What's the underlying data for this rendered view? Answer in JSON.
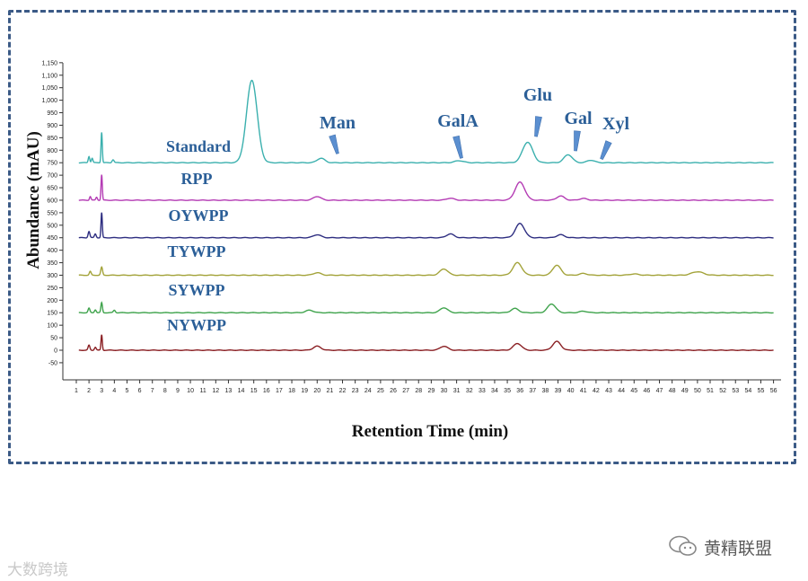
{
  "chart_data": {
    "type": "line",
    "title": "",
    "xlabel": "Retention Time (min)",
    "ylabel": "Abundance (mAU)",
    "xlim": [
      0,
      56
    ],
    "ylim": [
      -115,
      1150
    ],
    "x_ticks": [
      1,
      2,
      3,
      4,
      5,
      6,
      7,
      8,
      9,
      10,
      11,
      12,
      13,
      14,
      15,
      16,
      17,
      18,
      19,
      20,
      21,
      22,
      23,
      24,
      25,
      26,
      27,
      28,
      29,
      30,
      31,
      32,
      33,
      34,
      35,
      36,
      37,
      38,
      39,
      40,
      41,
      42,
      43,
      44,
      45,
      46,
      47,
      48,
      49,
      50,
      51,
      52,
      53,
      54,
      55,
      56
    ],
    "y_ticks": [
      -50,
      0,
      50,
      100,
      150,
      200,
      250,
      300,
      350,
      400,
      450,
      500,
      550,
      600,
      650,
      700,
      750,
      800,
      850,
      900,
      950,
      1000,
      1050,
      1100,
      1150
    ],
    "grid": false,
    "series": [
      {
        "name": "Standard",
        "color": "#3bb0ae",
        "baseline": 750,
        "peaks": [
          {
            "x": 2.0,
            "h": 25,
            "w": 0.06
          },
          {
            "x": 2.25,
            "h": 18,
            "w": 0.06
          },
          {
            "x": 3.0,
            "h": 122,
            "w": 0.05
          },
          {
            "x": 3.9,
            "h": 12,
            "w": 0.08
          },
          {
            "x": 14.85,
            "h": 330,
            "w": 0.42
          },
          {
            "x": 20.3,
            "h": 18,
            "w": 0.3
          },
          {
            "x": 31.2,
            "h": 8,
            "w": 0.35
          },
          {
            "x": 36.6,
            "h": 82,
            "w": 0.4
          },
          {
            "x": 39.8,
            "h": 32,
            "w": 0.33
          },
          {
            "x": 41.6,
            "h": 10,
            "w": 0.3
          }
        ]
      },
      {
        "name": "RPP",
        "color": "#b43bb4",
        "baseline": 600,
        "peaks": [
          {
            "x": 2.1,
            "h": 15,
            "w": 0.06
          },
          {
            "x": 2.6,
            "h": 12,
            "w": 0.06
          },
          {
            "x": 3.0,
            "h": 102,
            "w": 0.05
          },
          {
            "x": 20.0,
            "h": 15,
            "w": 0.3
          },
          {
            "x": 30.5,
            "h": 8,
            "w": 0.3
          },
          {
            "x": 36.0,
            "h": 72,
            "w": 0.38
          },
          {
            "x": 39.2,
            "h": 17,
            "w": 0.3
          },
          {
            "x": 41.0,
            "h": 7,
            "w": 0.3
          }
        ]
      },
      {
        "name": "OYWPP",
        "color": "#2d2d80",
        "baseline": 450,
        "peaks": [
          {
            "x": 2.0,
            "h": 25,
            "w": 0.07
          },
          {
            "x": 2.5,
            "h": 15,
            "w": 0.07
          },
          {
            "x": 3.0,
            "h": 100,
            "w": 0.05
          },
          {
            "x": 20.0,
            "h": 12,
            "w": 0.3
          },
          {
            "x": 30.5,
            "h": 15,
            "w": 0.3
          },
          {
            "x": 36.0,
            "h": 57,
            "w": 0.35
          },
          {
            "x": 39.2,
            "h": 12,
            "w": 0.3
          }
        ]
      },
      {
        "name": "TYWPP",
        "color": "#a3a33a",
        "baseline": 300,
        "peaks": [
          {
            "x": 2.1,
            "h": 15,
            "w": 0.07
          },
          {
            "x": 3.0,
            "h": 32,
            "w": 0.07
          },
          {
            "x": 20.0,
            "h": 10,
            "w": 0.3
          },
          {
            "x": 30.0,
            "h": 25,
            "w": 0.32
          },
          {
            "x": 35.8,
            "h": 50,
            "w": 0.35
          },
          {
            "x": 38.9,
            "h": 40,
            "w": 0.32
          },
          {
            "x": 41.0,
            "h": 7,
            "w": 0.3
          },
          {
            "x": 45.0,
            "h": 5,
            "w": 0.35
          },
          {
            "x": 50.0,
            "h": 14,
            "w": 0.45
          }
        ]
      },
      {
        "name": "SYWPP",
        "color": "#3fa34c",
        "baseline": 150,
        "peaks": [
          {
            "x": 2.0,
            "h": 18,
            "w": 0.07
          },
          {
            "x": 2.5,
            "h": 12,
            "w": 0.07
          },
          {
            "x": 3.0,
            "h": 40,
            "w": 0.06
          },
          {
            "x": 4.0,
            "h": 10,
            "w": 0.08
          },
          {
            "x": 19.4,
            "h": 10,
            "w": 0.3
          },
          {
            "x": 30.0,
            "h": 20,
            "w": 0.3
          },
          {
            "x": 35.6,
            "h": 17,
            "w": 0.3
          },
          {
            "x": 38.5,
            "h": 35,
            "w": 0.32
          },
          {
            "x": 41.0,
            "h": 6,
            "w": 0.3
          }
        ]
      },
      {
        "name": "NYWPP",
        "color": "#8a1f23",
        "baseline": 0,
        "peaks": [
          {
            "x": 2.0,
            "h": 20,
            "w": 0.07
          },
          {
            "x": 2.5,
            "h": 12,
            "w": 0.07
          },
          {
            "x": 3.0,
            "h": 62,
            "w": 0.05
          },
          {
            "x": 20.0,
            "h": 16,
            "w": 0.3
          },
          {
            "x": 30.0,
            "h": 16,
            "w": 0.3
          },
          {
            "x": 35.8,
            "h": 27,
            "w": 0.32
          },
          {
            "x": 38.9,
            "h": 35,
            "w": 0.32
          }
        ]
      }
    ],
    "annotations": [
      {
        "text": "Man",
        "x": 20.3
      },
      {
        "text": "GalA",
        "x": 31.2
      },
      {
        "text": "Glu",
        "x": 36.6
      },
      {
        "text": "Gal",
        "x": 39.8
      },
      {
        "text": "Xyl",
        "x": 41.6
      }
    ]
  },
  "watermarks": {
    "left": "大数跨境",
    "right": "黄精联盟"
  }
}
